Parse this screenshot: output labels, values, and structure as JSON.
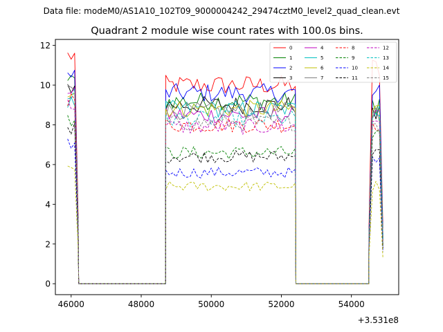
{
  "chart_data": {
    "type": "line",
    "suptitle": "Data file: modeM0/AS1A10_102T09_9000004242_29474cztM0_level2_quad_clean.evt",
    "title": "Quadrant 2 module wise count rates with 100.0s bins.",
    "xlabel": "",
    "ylabel": "",
    "offset_text": "+3.531e8",
    "xlim": [
      45550,
      55350
    ],
    "ylim": [
      -0.55,
      12.3
    ],
    "x_ticks": [
      46000,
      48000,
      50000,
      52000,
      54000
    ],
    "x_tick_labels": [
      "46000",
      "48000",
      "50000",
      "52000",
      "54000"
    ],
    "y_ticks": [
      0,
      2,
      4,
      6,
      8,
      10,
      12
    ],
    "y_tick_labels": [
      "0",
      "2",
      "4",
      "6",
      "8",
      "10",
      "12"
    ],
    "legend_position": "upper right",
    "x_offset": 353100000,
    "segments": [
      {
        "start": 45900,
        "end": 46200,
        "step": 100
      },
      {
        "start": 48700,
        "end": 52400,
        "step": 100
      },
      {
        "start": 54500,
        "end": 54900,
        "step": 100
      }
    ],
    "gap_value": 0,
    "series": [
      {
        "name": "0",
        "color": "#ff0000",
        "dash": "solid",
        "levels": [
          11.6,
          10.0,
          11.2
        ]
      },
      {
        "name": "1",
        "color": "#008000",
        "dash": "solid",
        "levels": [
          10.3,
          9.2,
          9.5
        ]
      },
      {
        "name": "2",
        "color": "#0000ff",
        "dash": "solid",
        "levels": [
          10.6,
          9.6,
          9.9
        ]
      },
      {
        "name": "3",
        "color": "#000000",
        "dash": "solid",
        "levels": [
          10.0,
          9.0,
          8.8
        ]
      },
      {
        "name": "4",
        "color": "#bf00bf",
        "dash": "solid",
        "levels": [
          9.9,
          8.5,
          9.2
        ]
      },
      {
        "name": "5",
        "color": "#00bfbf",
        "dash": "solid",
        "levels": [
          9.2,
          8.8,
          9.3
        ]
      },
      {
        "name": "6",
        "color": "#bfbf00",
        "dash": "solid",
        "levels": [
          9.7,
          8.8,
          9.1
        ]
      },
      {
        "name": "7",
        "color": "#808080",
        "dash": "solid",
        "levels": [
          10.2,
          8.7,
          9.0
        ]
      },
      {
        "name": "8",
        "color": "#ff0000",
        "dash": "dashed",
        "levels": [
          9.4,
          8.0,
          8.5
        ]
      },
      {
        "name": "9",
        "color": "#008000",
        "dash": "dashed",
        "levels": [
          8.3,
          6.6,
          7.6
        ]
      },
      {
        "name": "10",
        "color": "#0000ff",
        "dash": "dashed",
        "levels": [
          7.1,
          5.6,
          6.4
        ]
      },
      {
        "name": "11",
        "color": "#000000",
        "dash": "dashed",
        "levels": [
          7.9,
          6.4,
          7.2
        ]
      },
      {
        "name": "12",
        "color": "#bf00bf",
        "dash": "dashed",
        "levels": [
          9.1,
          7.9,
          8.6
        ]
      },
      {
        "name": "13",
        "color": "#00bfbf",
        "dash": "dashed",
        "levels": [
          9.6,
          8.3,
          8.9
        ]
      },
      {
        "name": "14",
        "color": "#bfbf00",
        "dash": "dashed",
        "levels": [
          5.8,
          4.9,
          5.1
        ]
      },
      {
        "name": "15",
        "color": "#808080",
        "dash": "dashed",
        "levels": [
          9.8,
          8.1,
          8.4
        ]
      }
    ]
  }
}
